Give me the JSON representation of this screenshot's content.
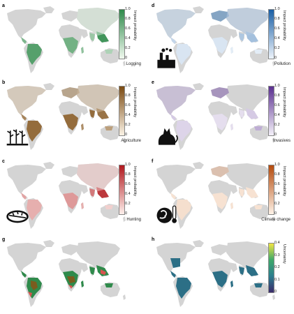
{
  "panels": [
    {
      "letter": "a",
      "label": "Logging",
      "cbar_title": "Impact probability",
      "ticks": [
        "1.0",
        "0.8",
        "0.6",
        "0.4",
        "0.2",
        "0"
      ],
      "colors": [
        "#f1f9ef",
        "#2f8a4b"
      ],
      "icon": ""
    },
    {
      "letter": "d",
      "label": "Pollution",
      "cbar_title": "Impact probability",
      "ticks": [
        "1.0",
        "0.8",
        "0.6",
        "0.4",
        "0.2",
        "0"
      ],
      "colors": [
        "#eef4fb",
        "#1a5fa5"
      ],
      "icon": "factory-icon"
    },
    {
      "letter": "b",
      "label": "Agriculture",
      "cbar_title": "Impact probability",
      "ticks": [
        "1.0",
        "0.8",
        "0.6",
        "0.4",
        "0.2",
        "0"
      ],
      "colors": [
        "#fbf3e6",
        "#7a4a12"
      ],
      "icon": "crops-icon"
    },
    {
      "letter": "e",
      "label": "Invasives",
      "cbar_title": "Impact probability",
      "ticks": [
        "1.0",
        "0.8",
        "0.6",
        "0.4",
        "0.2",
        "0"
      ],
      "colors": [
        "#f4f1f9",
        "#5a2f8f"
      ],
      "icon": "cat-icon"
    },
    {
      "letter": "c",
      "label": "Hunting",
      "cbar_title": "Impact probability",
      "ticks": [
        "1.0",
        "0.8",
        "0.6",
        "0.4",
        "0.2",
        "0"
      ],
      "colors": [
        "#fdf0ec",
        "#b0171d"
      ],
      "icon": "trap-icon"
    },
    {
      "letter": "f",
      "label": "Climate change",
      "cbar_title": "Impact probability",
      "ticks": [
        "1.0",
        "0.8",
        "0.6",
        "0.4",
        "0.2",
        "0"
      ],
      "colors": [
        "#fef3e8",
        "#b44a0c"
      ],
      "icon": "globe-thermometer-icon"
    },
    {
      "letter": "g",
      "label": "",
      "cbar_title": "",
      "ticks": [],
      "colors": [
        "#2f8a4b",
        "#7a5c1e",
        "#d9534f"
      ],
      "icon": ""
    },
    {
      "letter": "h",
      "label": "",
      "cbar_title": "Uncertainty",
      "ticks": [
        "0.4",
        "0.3",
        "0.2",
        "0.1",
        "0"
      ],
      "colors": [
        "#3b2a6b",
        "#2c7e8e",
        "#3fa96a",
        "#f0e442"
      ],
      "icon": ""
    }
  ]
}
